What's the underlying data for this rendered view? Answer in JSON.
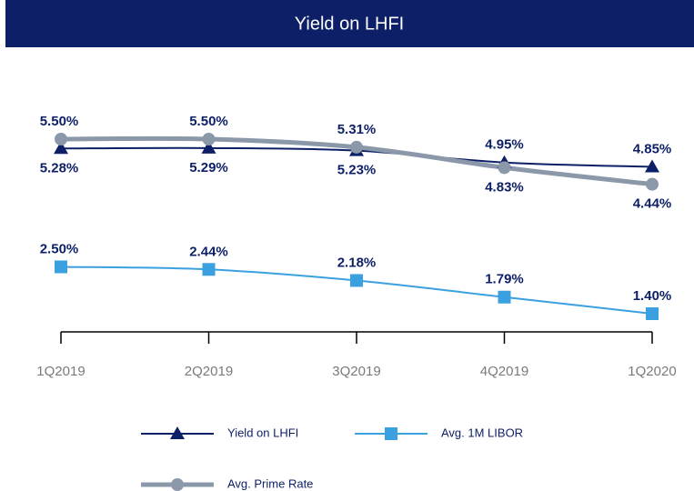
{
  "chart_data": {
    "type": "line",
    "title": "Yield on LHFI",
    "categories": [
      "1Q2019",
      "2Q2019",
      "3Q2019",
      "4Q2019",
      "1Q2020"
    ],
    "series": [
      {
        "name": "Yield on LHFI",
        "color": "#0d1f66",
        "marker": "triangle",
        "values": [
          5.28,
          5.29,
          5.23,
          4.95,
          4.85
        ],
        "value_labels": [
          "5.28%",
          "5.29%",
          "5.23%",
          "4.95%",
          "4.85%"
        ]
      },
      {
        "name": "Avg. 1M LIBOR",
        "color": "#3aa0e0",
        "marker": "square",
        "values": [
          2.5,
          2.44,
          2.18,
          1.79,
          1.4
        ],
        "value_labels": [
          "2.50%",
          "2.44%",
          "2.18%",
          "1.79%",
          "1.40%"
        ]
      },
      {
        "name": "Avg. Prime Rate",
        "color": "#8a98aa",
        "marker": "circle",
        "values": [
          5.5,
          5.5,
          5.31,
          4.83,
          4.44
        ],
        "value_labels": [
          "5.50%",
          "5.50%",
          "5.31%",
          "4.83%",
          "4.44%"
        ]
      }
    ]
  }
}
